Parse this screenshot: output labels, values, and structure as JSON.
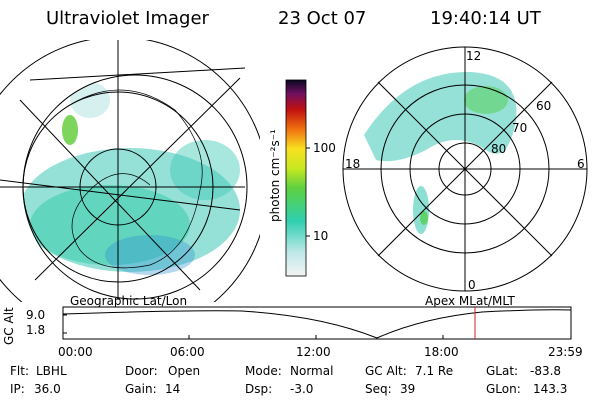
{
  "header": {
    "title": "Ultraviolet Imager",
    "date": "23 Oct 07",
    "time": "19:40:14 UT"
  },
  "colorbar": {
    "label": "photon cm⁻²s⁻¹",
    "ticks": [
      "100",
      "10"
    ]
  },
  "geo_panel": {
    "label": "Geographic Lat/Lon"
  },
  "apex_panel": {
    "label": "Apex MLat/MLT",
    "mlt_labels": {
      "top": "12",
      "bottom": "0",
      "left": "18",
      "right": "6"
    },
    "lat_labels": [
      "60",
      "70",
      "80"
    ]
  },
  "alt_plot": {
    "ylabel": "GC Alt",
    "yticks": [
      "9.0",
      "1.8"
    ],
    "xticks": [
      "00:00",
      "06:00",
      "12:00",
      "18:00",
      "23:59"
    ],
    "marker_color": "#d02020",
    "line_color": "#000000"
  },
  "info": {
    "row1": [
      {
        "label": "Flt:",
        "value": "LBHL"
      },
      {
        "label": "Door:",
        "value": "Open"
      },
      {
        "label": "Mode:",
        "value": "Normal"
      },
      {
        "label": "GC Alt:",
        "value": "7.1 Re"
      },
      {
        "label": "GLat:",
        "value": "-83.8"
      }
    ],
    "row2": [
      {
        "label": "IP:",
        "value": "36.0"
      },
      {
        "label": "Gain:",
        "value": "14"
      },
      {
        "label": "Dsp:",
        "value": "-3.0"
      },
      {
        "label": "Seq:",
        "value": "39"
      },
      {
        "label": "GLon:",
        "value": "143.3"
      }
    ]
  }
}
